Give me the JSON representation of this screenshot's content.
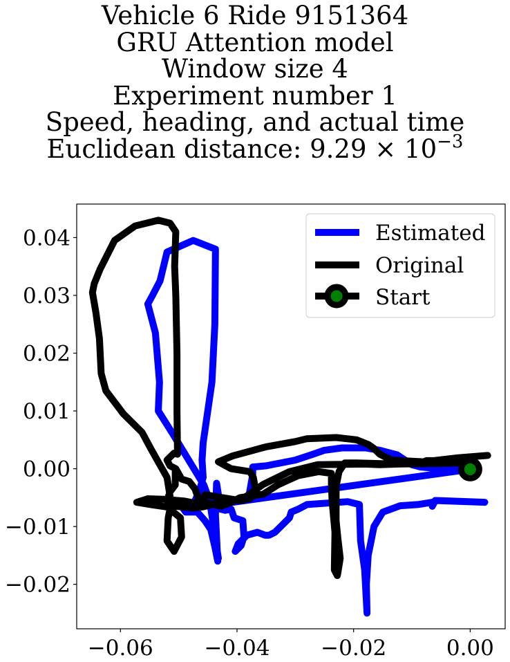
{
  "chart_data": {
    "type": "line",
    "title_lines": [
      "Vehicle 6 Ride 9151364",
      "GRU Attention model",
      "Window size 4",
      "Experiment number 1",
      "Speed, heading, and actual time"
    ],
    "distance_label": "Euclidean distance: 9.29",
    "distance_times": "×",
    "distance_base": "10",
    "distance_exponent": "−3",
    "xlabel": "",
    "ylabel": "",
    "xlim": [
      -0.0675,
      0.006
    ],
    "ylim": [
      -0.0277,
      0.0458
    ],
    "x_ticks": [
      -0.06,
      -0.04,
      -0.02,
      0.0
    ],
    "x_tick_labels": [
      "−0.06",
      "−0.04",
      "−0.02",
      "0.00"
    ],
    "y_ticks": [
      0.04,
      0.03,
      0.02,
      0.01,
      0.0,
      -0.01,
      -0.02
    ],
    "y_tick_labels": [
      "0.04",
      "0.03",
      "0.02",
      "0.01",
      "0.00",
      "−0.01",
      "−0.02"
    ],
    "grid": false,
    "legend_position": "top-right",
    "legend": [
      "Estimated",
      "Original",
      "Start"
    ],
    "series": [
      {
        "name": "Estimated",
        "color": "#0000ff",
        "points": [
          [
            0.0025,
            -0.0058
          ],
          [
            -0.006,
            -0.0055
          ],
          [
            -0.0065,
            -0.0065
          ],
          [
            -0.0065,
            -0.0058
          ],
          [
            -0.009,
            -0.0062
          ],
          [
            -0.012,
            -0.0064
          ],
          [
            -0.015,
            -0.0075
          ],
          [
            -0.0165,
            -0.01
          ],
          [
            -0.0175,
            -0.015
          ],
          [
            -0.0178,
            -0.02
          ],
          [
            -0.0177,
            -0.025
          ],
          [
            -0.0181,
            -0.0175
          ],
          [
            -0.0188,
            -0.0125
          ],
          [
            -0.019,
            -0.0062
          ],
          [
            -0.021,
            -0.0057
          ],
          [
            -0.028,
            -0.0062
          ],
          [
            -0.0295,
            -0.007
          ],
          [
            -0.0307,
            -0.0075
          ],
          [
            -0.031,
            -0.0085
          ],
          [
            -0.0323,
            -0.0098
          ],
          [
            -0.0335,
            -0.011
          ],
          [
            -0.0345,
            -0.0115
          ],
          [
            -0.0352,
            -0.0115
          ],
          [
            -0.0365,
            -0.011
          ],
          [
            -0.0383,
            -0.0115
          ],
          [
            -0.0398,
            -0.013
          ],
          [
            -0.0403,
            -0.0143
          ],
          [
            -0.0393,
            -0.0133
          ],
          [
            -0.0388,
            -0.0118
          ],
          [
            -0.039,
            -0.009
          ],
          [
            -0.0405,
            -0.0085
          ],
          [
            -0.041,
            -0.007
          ],
          [
            -0.042,
            -0.0072
          ],
          [
            -0.0428,
            -0.007
          ],
          [
            -0.0435,
            -0.0025
          ],
          [
            -0.0437,
            -0.008
          ],
          [
            -0.0433,
            -0.016
          ],
          [
            -0.0438,
            -0.0135
          ],
          [
            -0.0445,
            -0.0105
          ],
          [
            -0.0455,
            -0.009
          ],
          [
            -0.0468,
            -0.0075
          ],
          [
            -0.0488,
            -0.0075
          ],
          [
            -0.0495,
            -0.0065
          ],
          [
            -0.046,
            -0.006
          ],
          [
            -0.042,
            -0.006
          ],
          [
            -0.038,
            -0.005
          ],
          [
            -0.0373,
            -0.001
          ],
          [
            -0.0373,
            0.0003
          ],
          [
            -0.035,
            0.0005
          ],
          [
            -0.03,
            0.0015
          ],
          [
            -0.027,
            0.0025
          ],
          [
            -0.025,
            0.0032
          ],
          [
            -0.022,
            0.0036
          ],
          [
            -0.018,
            0.0036
          ],
          [
            -0.0155,
            0.0032
          ],
          [
            -0.0125,
            0.0024
          ],
          [
            -0.01,
            0.0007
          ],
          [
            -0.0085,
            0.0003
          ],
          [
            -0.004,
            -0.0001
          ],
          [
            0.0,
            -0.0001
          ],
          [
            -0.0478,
            -0.0068
          ],
          [
            -0.0465,
            -0.004
          ],
          [
            -0.0458,
            -0.0015
          ],
          [
            -0.046,
            0.0015
          ],
          [
            -0.0458,
            0.0045
          ],
          [
            -0.0443,
            0.015
          ],
          [
            -0.0438,
            0.025
          ],
          [
            -0.0437,
            0.038
          ],
          [
            -0.0475,
            0.0395
          ],
          [
            -0.052,
            0.0375
          ],
          [
            -0.0532,
            0.0325
          ],
          [
            -0.0545,
            0.03
          ],
          [
            -0.0553,
            0.0285
          ],
          [
            -0.054,
            0.0235
          ],
          [
            -0.0533,
            0.015
          ],
          [
            -0.0535,
            0.01
          ],
          [
            -0.051,
            0.006
          ],
          [
            -0.048,
            0.001
          ],
          [
            -0.0457,
            -0.0028
          ],
          [
            -0.0447,
            -0.0055
          ],
          [
            -0.0432,
            -0.0155
          ]
        ]
      },
      {
        "name": "Original",
        "color": "#000000",
        "points": [
          [
            0.003,
            0.0023
          ],
          [
            -0.002,
            0.0019
          ],
          [
            -0.008,
            0.0012
          ],
          [
            -0.0125,
            0.0008
          ],
          [
            -0.0155,
            0.0007
          ],
          [
            -0.0182,
            0.0008
          ],
          [
            -0.0262,
            0.0007
          ],
          [
            -0.031,
            -0.0005
          ],
          [
            -0.0355,
            -0.0027
          ],
          [
            -0.038,
            -0.0045
          ],
          [
            -0.0395,
            -0.0055
          ],
          [
            -0.0425,
            -0.005
          ],
          [
            -0.0455,
            -0.0045
          ],
          [
            -0.046,
            -0.006
          ],
          [
            -0.047,
            -0.006
          ],
          [
            -0.049,
            -0.0056
          ],
          [
            -0.0523,
            -0.0053
          ],
          [
            -0.0553,
            -0.0052
          ],
          [
            -0.0572,
            -0.0058
          ],
          [
            -0.0548,
            -0.0062
          ],
          [
            -0.0522,
            -0.0066
          ],
          [
            -0.0505,
            -0.0065
          ],
          [
            -0.0475,
            -0.0068
          ],
          [
            -0.0458,
            -0.0066
          ],
          [
            -0.0442,
            -0.0062
          ],
          [
            -0.0438,
            -0.006
          ],
          [
            -0.0412,
            -0.0055
          ],
          [
            -0.0392,
            -0.0055
          ],
          [
            -0.0378,
            -0.0052
          ],
          [
            -0.0368,
            -0.0038
          ],
          [
            -0.0372,
            -0.0015
          ],
          [
            -0.0378,
            -0.0005
          ],
          [
            -0.041,
            0.0
          ],
          [
            -0.0432,
            0.0012
          ],
          [
            -0.0408,
            0.0022
          ],
          [
            -0.0372,
            0.0032
          ],
          [
            -0.035,
            0.0038
          ],
          [
            -0.03,
            0.0047
          ],
          [
            -0.028,
            0.0052
          ],
          [
            -0.023,
            0.0054
          ],
          [
            -0.0195,
            0.005
          ],
          [
            -0.0175,
            0.0042
          ],
          [
            -0.0165,
            0.0035
          ],
          [
            -0.0155,
            0.0025
          ],
          [
            -0.0135,
            0.0015
          ],
          [
            -0.01,
            0.0013
          ],
          [
            -0.008,
            0.0012
          ],
          [
            -0.0075,
            0.0014
          ],
          [
            -0.005,
            0.0014
          ],
          [
            0.0,
            0.001
          ],
          [
            -0.0125,
            0.0008
          ],
          [
            -0.0195,
            0.001
          ],
          [
            -0.0215,
            0.001
          ],
          [
            -0.0225,
            -0.0005
          ],
          [
            -0.023,
            -0.003
          ],
          [
            -0.023,
            -0.009
          ],
          [
            -0.0227,
            -0.012
          ],
          [
            -0.0223,
            -0.0155
          ],
          [
            -0.0227,
            -0.018
          ],
          [
            -0.0228,
            -0.0185
          ],
          [
            -0.0233,
            -0.0175
          ],
          [
            -0.0232,
            -0.011
          ],
          [
            -0.0237,
            -0.0055
          ],
          [
            -0.0238,
            -0.0025
          ],
          [
            -0.0238,
            -0.0008
          ],
          [
            -0.026,
            -0.0005
          ],
          [
            -0.0295,
            -0.0012
          ],
          [
            -0.033,
            -0.0028
          ],
          [
            -0.0355,
            -0.0044
          ],
          [
            -0.0395,
            -0.005
          ],
          [
            -0.041,
            -0.0058
          ],
          [
            -0.0428,
            -0.0065
          ],
          [
            -0.0465,
            -0.0055
          ],
          [
            -0.0472,
            -0.0035
          ],
          [
            -0.0482,
            -0.0022
          ],
          [
            -0.0495,
            -0.0018
          ],
          [
            -0.0505,
            0.0
          ],
          [
            -0.0515,
            0.0005
          ],
          [
            -0.052,
            0.0015
          ],
          [
            -0.0508,
            0.0027
          ],
          [
            -0.0502,
            0.0025
          ],
          [
            -0.0503,
            0.01
          ],
          [
            -0.0503,
            0.02
          ],
          [
            -0.0505,
            0.03
          ],
          [
            -0.0507,
            0.035
          ],
          [
            -0.0505,
            0.041
          ],
          [
            -0.0515,
            0.0425
          ],
          [
            -0.0535,
            0.043
          ],
          [
            -0.0575,
            0.042
          ],
          [
            -0.061,
            0.0395
          ],
          [
            -0.0635,
            0.0345
          ],
          [
            -0.0645,
            0.032
          ],
          [
            -0.0648,
            0.0305
          ],
          [
            -0.0642,
            0.027
          ],
          [
            -0.0636,
            0.0225
          ],
          [
            -0.0633,
            0.0165
          ],
          [
            -0.0625,
            0.0135
          ],
          [
            -0.0595,
            0.0095
          ],
          [
            -0.0563,
            0.0063
          ],
          [
            -0.0547,
            0.0033
          ],
          [
            -0.0533,
            0.0008
          ],
          [
            -0.052,
            -0.0015
          ],
          [
            -0.0513,
            -0.006
          ],
          [
            -0.0518,
            -0.0085
          ],
          [
            -0.052,
            -0.0125
          ],
          [
            -0.0508,
            -0.0143
          ],
          [
            -0.0495,
            -0.0118
          ],
          [
            -0.0497,
            -0.0085
          ],
          [
            -0.0514,
            -0.0071
          ],
          [
            -0.052,
            -0.0055
          ],
          [
            -0.0515,
            -0.004
          ],
          [
            -0.0506,
            -0.0028
          ],
          [
            -0.0506,
            0.0
          ]
        ]
      }
    ],
    "start_point": {
      "name": "Start",
      "x": 0.0,
      "y": -0.0001,
      "marker_color": "#008000",
      "edge_color": "#000000"
    }
  }
}
